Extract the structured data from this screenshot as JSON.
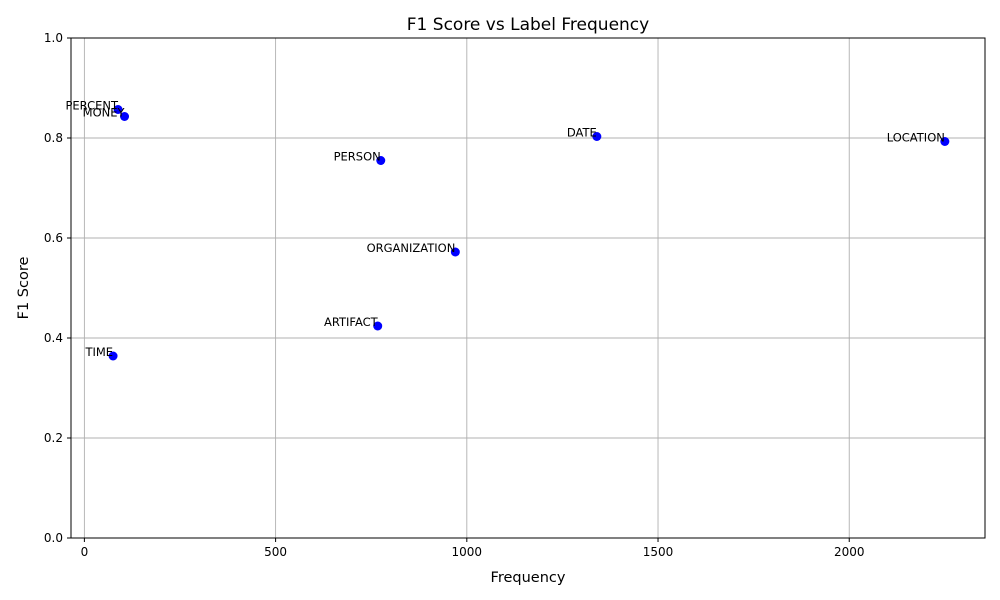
{
  "chart_data": {
    "type": "scatter",
    "title": "F1 Score vs Label Frequency",
    "xlabel": "Frequency",
    "ylabel": "F1 Score",
    "xlim": [
      -35,
      2355
    ],
    "ylim": [
      0,
      1
    ],
    "xticks": [
      0,
      500,
      1000,
      1500,
      2000
    ],
    "yticks": [
      0.0,
      0.2,
      0.4,
      0.6,
      0.8,
      1.0
    ],
    "xtick_labels": [
      "0",
      "500",
      "1000",
      "1500",
      "2000"
    ],
    "ytick_labels": [
      "0.0",
      "0.2",
      "0.4",
      "0.6",
      "0.8",
      "1.0"
    ],
    "grid": true,
    "marker_color": "#0000ff",
    "points": [
      {
        "label": "PERCENT",
        "x": 88,
        "y": 0.857
      },
      {
        "label": "MONEY",
        "x": 105,
        "y": 0.843
      },
      {
        "label": "DATE",
        "x": 1340,
        "y": 0.803
      },
      {
        "label": "LOCATION",
        "x": 2250,
        "y": 0.793
      },
      {
        "label": "PERSON",
        "x": 775,
        "y": 0.755
      },
      {
        "label": "ORGANIZATION",
        "x": 970,
        "y": 0.572
      },
      {
        "label": "ARTIFACT",
        "x": 767,
        "y": 0.424
      },
      {
        "label": "TIME",
        "x": 75,
        "y": 0.364
      }
    ]
  }
}
